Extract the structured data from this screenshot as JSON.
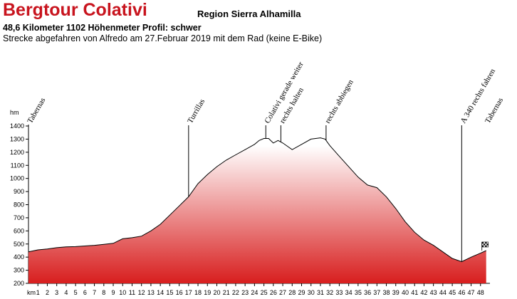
{
  "header": {
    "title": "Bergtour Colativi",
    "region": "Region Sierra Alhamilla",
    "info": "48,6 Kilometer  1102 Höhenmeter  Profil: schwer",
    "description": "Strecke abgefahren von Alfredo am 27.Februar 2019 mit dem Rad (keine E-Bike)"
  },
  "chart_data": {
    "type": "area",
    "ylabel": "hm",
    "xlabel": "km",
    "ylim": [
      200,
      1400
    ],
    "xlim": [
      0,
      49
    ],
    "yticks": [
      200,
      300,
      400,
      500,
      600,
      700,
      800,
      900,
      1000,
      1100,
      1200,
      1300,
      1400
    ],
    "xticks": [
      1,
      2,
      3,
      4,
      5,
      6,
      7,
      8,
      9,
      10,
      11,
      12,
      13,
      14,
      15,
      16,
      17,
      18,
      19,
      20,
      21,
      22,
      23,
      24,
      25,
      26,
      27,
      28,
      29,
      30,
      31,
      32,
      33,
      34,
      35,
      36,
      37,
      38,
      39,
      40,
      41,
      42,
      43,
      44,
      45,
      46,
      47,
      48
    ],
    "fill_color_top": "#d81e1e",
    "fill_color_bottom": "#ffffff",
    "profile": {
      "x": [
        0,
        1,
        2,
        3,
        4,
        5,
        6,
        7,
        8,
        9,
        10,
        11,
        12,
        13,
        14,
        15,
        16,
        17,
        18,
        19,
        20,
        21,
        22,
        23,
        24,
        24.5,
        25,
        25.5,
        26,
        26.5,
        27,
        28,
        29,
        30,
        31,
        31.5,
        32,
        33,
        34,
        35,
        36,
        37,
        38,
        39,
        40,
        41,
        42,
        43,
        44,
        45,
        46,
        47,
        48,
        48.6
      ],
      "y": [
        440,
        455,
        462,
        472,
        478,
        480,
        485,
        490,
        497,
        505,
        540,
        548,
        560,
        600,
        650,
        720,
        790,
        860,
        960,
        1030,
        1090,
        1140,
        1180,
        1220,
        1260,
        1290,
        1305,
        1305,
        1270,
        1290,
        1270,
        1220,
        1260,
        1300,
        1310,
        1300,
        1250,
        1170,
        1090,
        1010,
        950,
        930,
        860,
        770,
        670,
        590,
        530,
        490,
        440,
        390,
        365,
        400,
        430,
        450
      ]
    },
    "waypoints": [
      {
        "km": 0,
        "label": "Tabernas",
        "line": false
      },
      {
        "km": 17,
        "label": "Turrillas",
        "line": true
      },
      {
        "km": 25.2,
        "label": "Colativi gerade weiter",
        "line": true
      },
      {
        "km": 26.8,
        "label": "rechts halten",
        "line": true
      },
      {
        "km": 31.6,
        "label": "rechts abbiegen",
        "line": true
      },
      {
        "km": 46,
        "label": "A 340 rechts fahren",
        "line": true
      },
      {
        "km": 48.6,
        "label": "Tabernas",
        "line": false
      }
    ],
    "finish_flag": "checkered-flag-icon"
  }
}
